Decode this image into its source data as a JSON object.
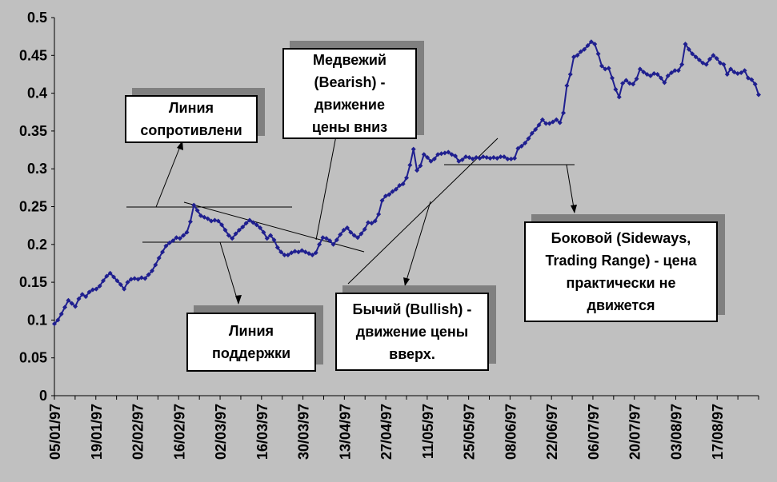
{
  "chart_data": {
    "type": "line",
    "title": "",
    "xlabel": "",
    "ylabel": "",
    "ylim": [
      0,
      0.5
    ],
    "yticks": [
      "0",
      "0.05",
      "0.1",
      "0.15",
      "0.2",
      "0.25",
      "0.3",
      "0.35",
      "0.4",
      "0.45",
      "0.5"
    ],
    "xtick_labels": [
      "05/01/97",
      "19/01/97",
      "02/02/97",
      "16/02/97",
      "02/03/97",
      "16/03/97",
      "30/03/97",
      "13/04/97",
      "27/04/97",
      "11/05/97",
      "25/05/97",
      "08/06/97",
      "22/06/97",
      "06/07/97",
      "20/07/97",
      "03/08/97",
      "17/08/97"
    ],
    "grid": false,
    "legend": "none",
    "colors": {
      "series": "#1f1f8f",
      "plot_bg": "#c0c0c0",
      "page_bg": "#c0c0c0"
    },
    "series": [
      {
        "values": [
          0.095,
          0.1,
          0.108,
          0.117,
          0.126,
          0.122,
          0.118,
          0.128,
          0.134,
          0.131,
          0.137,
          0.14,
          0.141,
          0.145,
          0.152,
          0.158,
          0.162,
          0.157,
          0.152,
          0.147,
          0.141,
          0.15,
          0.154,
          0.155,
          0.154,
          0.156,
          0.155,
          0.16,
          0.165,
          0.173,
          0.182,
          0.19,
          0.198,
          0.202,
          0.205,
          0.209,
          0.208,
          0.212,
          0.216,
          0.23,
          0.252,
          0.245,
          0.238,
          0.236,
          0.234,
          0.231,
          0.232,
          0.231,
          0.226,
          0.219,
          0.212,
          0.208,
          0.214,
          0.219,
          0.223,
          0.228,
          0.232,
          0.229,
          0.226,
          0.222,
          0.216,
          0.208,
          0.212,
          0.206,
          0.196,
          0.19,
          0.186,
          0.186,
          0.189,
          0.191,
          0.19,
          0.192,
          0.19,
          0.188,
          0.186,
          0.189,
          0.2,
          0.209,
          0.208,
          0.205,
          0.2,
          0.206,
          0.213,
          0.219,
          0.222,
          0.216,
          0.212,
          0.209,
          0.214,
          0.22,
          0.229,
          0.228,
          0.231,
          0.24,
          0.258,
          0.264,
          0.266,
          0.27,
          0.273,
          0.278,
          0.28,
          0.288,
          0.305,
          0.326,
          0.298,
          0.304,
          0.319,
          0.315,
          0.31,
          0.313,
          0.319,
          0.32,
          0.321,
          0.322,
          0.319,
          0.317,
          0.31,
          0.312,
          0.316,
          0.315,
          0.313,
          0.315,
          0.314,
          0.316,
          0.315,
          0.314,
          0.315,
          0.314,
          0.316,
          0.316,
          0.313,
          0.313,
          0.314,
          0.327,
          0.33,
          0.334,
          0.34,
          0.347,
          0.352,
          0.358,
          0.365,
          0.36,
          0.36,
          0.362,
          0.365,
          0.361,
          0.374,
          0.41,
          0.425,
          0.448,
          0.45,
          0.455,
          0.458,
          0.463,
          0.468,
          0.465,
          0.452,
          0.436,
          0.432,
          0.433,
          0.42,
          0.405,
          0.395,
          0.413,
          0.417,
          0.413,
          0.412,
          0.419,
          0.432,
          0.428,
          0.425,
          0.423,
          0.426,
          0.425,
          0.42,
          0.414,
          0.423,
          0.427,
          0.43,
          0.43,
          0.438,
          0.465,
          0.458,
          0.452,
          0.448,
          0.444,
          0.44,
          0.438,
          0.445,
          0.45,
          0.446,
          0.44,
          0.438,
          0.425,
          0.432,
          0.428,
          0.426,
          0.427,
          0.43,
          0.42,
          0.418,
          0.412,
          0.398
        ]
      }
    ],
    "annotations": [
      {
        "label": "Линия\nсопротивлени"
      },
      {
        "label": "Медвежий\n(Bearish) -\nдвижение\nцены вниз"
      },
      {
        "label": "Линия\nподдержки"
      },
      {
        "label": "Бычий (Bullish) -\nдвижение цены\nвверх."
      },
      {
        "label": "Боковой (Sideways,\nTrading Range) - цена\nпрактически не\nдвижется"
      }
    ]
  }
}
